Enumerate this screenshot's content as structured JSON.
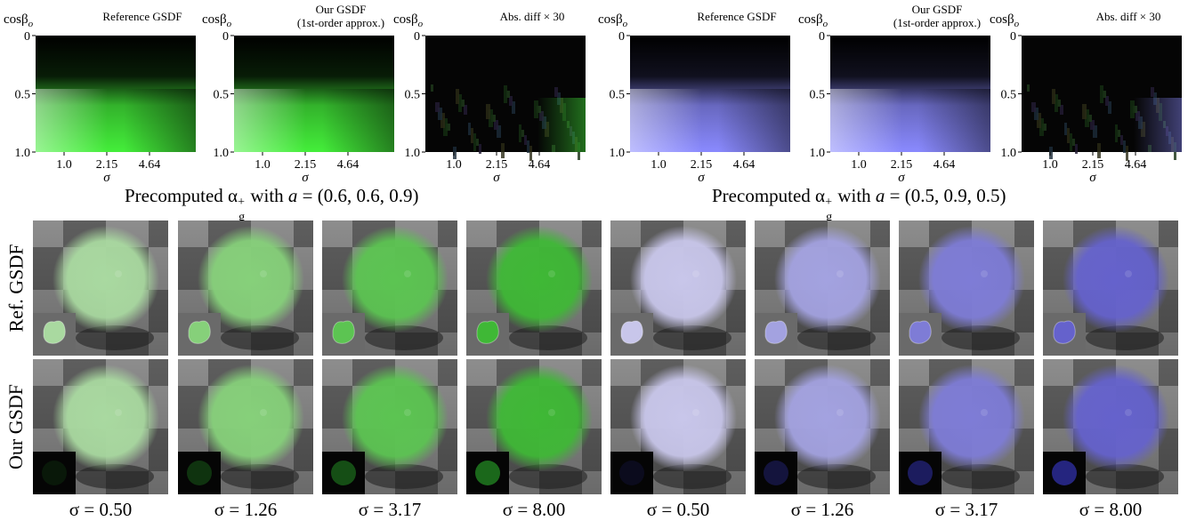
{
  "panels": [
    {
      "plots": [
        {
          "title": "Reference GSDF",
          "title_line2": "",
          "kind": "ref"
        },
        {
          "title": "Our GSDF",
          "title_line2": "(1st-order approx.)",
          "kind": "ours"
        },
        {
          "title": "Abs. diff × 30",
          "title_line2": "",
          "kind": "diff"
        }
      ],
      "color": "#44ee3a",
      "caption": {
        "pre": "Precomputed α",
        "sub": "g",
        "sup": "+",
        "post": " with ",
        "var": "a",
        "eq": " = (0.6, 0.6, 0.9)"
      }
    },
    {
      "plots": [
        {
          "title": "Reference GSDF",
          "title_line2": "",
          "kind": "ref"
        },
        {
          "title": "Our GSDF",
          "title_line2": "(1st-order approx.)",
          "kind": "ours"
        },
        {
          "title": "Abs. diff × 30",
          "title_line2": "",
          "kind": "diff"
        }
      ],
      "color": "#8a8aff",
      "caption": {
        "pre": "Precomputed α",
        "sub": "g",
        "sup": "+",
        "post": " with ",
        "var": "a",
        "eq": " = (0.5, 0.9, 0.5)"
      }
    }
  ],
  "axes": {
    "ylabel": "cosβ",
    "ylabel_sub": "o",
    "xlabel": "σ",
    "yticks": [
      "0",
      "0.5",
      "1.0"
    ],
    "xticks": [
      "1.0",
      "2.15",
      "4.64"
    ]
  },
  "rows": [
    {
      "label": "Ref. GSDF",
      "inset": "object"
    },
    {
      "label": "Our GSDF",
      "inset": "diff"
    }
  ],
  "sigma_labels": [
    "σ = 0.50",
    "σ = 1.26",
    "σ = 3.17",
    "σ = 8.00",
    "σ = 0.50",
    "σ = 1.26",
    "σ = 3.17",
    "σ = 8.00"
  ],
  "renders": {
    "green": [
      "#a9d9a0",
      "#86d07a",
      "#5cc452",
      "#3fb836"
    ],
    "blue": [
      "#c8c6ea",
      "#a3a2e0",
      "#7e7cd6",
      "#6562cc"
    ]
  }
}
